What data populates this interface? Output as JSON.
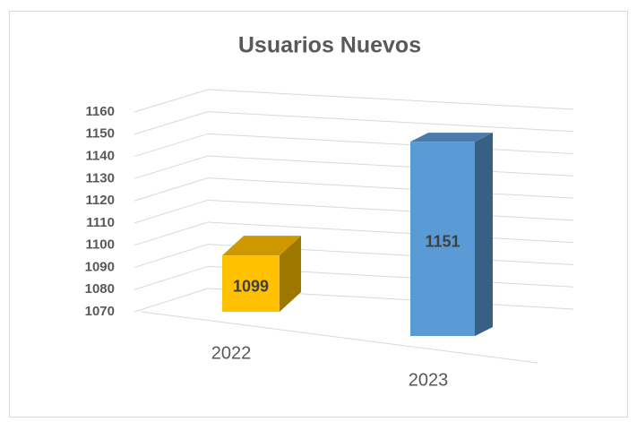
{
  "chart_data": {
    "type": "bar3d",
    "title": "Usuarios Nuevos",
    "categories": [
      "2022",
      "2023"
    ],
    "values": [
      1099,
      1151
    ],
    "colors": [
      "#ffc000",
      "#5b9bd5"
    ],
    "ylim": [
      1070,
      1160
    ],
    "yticks": [
      1070,
      1080,
      1090,
      1100,
      1110,
      1120,
      1130,
      1140,
      1150,
      1160
    ],
    "grid": true
  }
}
